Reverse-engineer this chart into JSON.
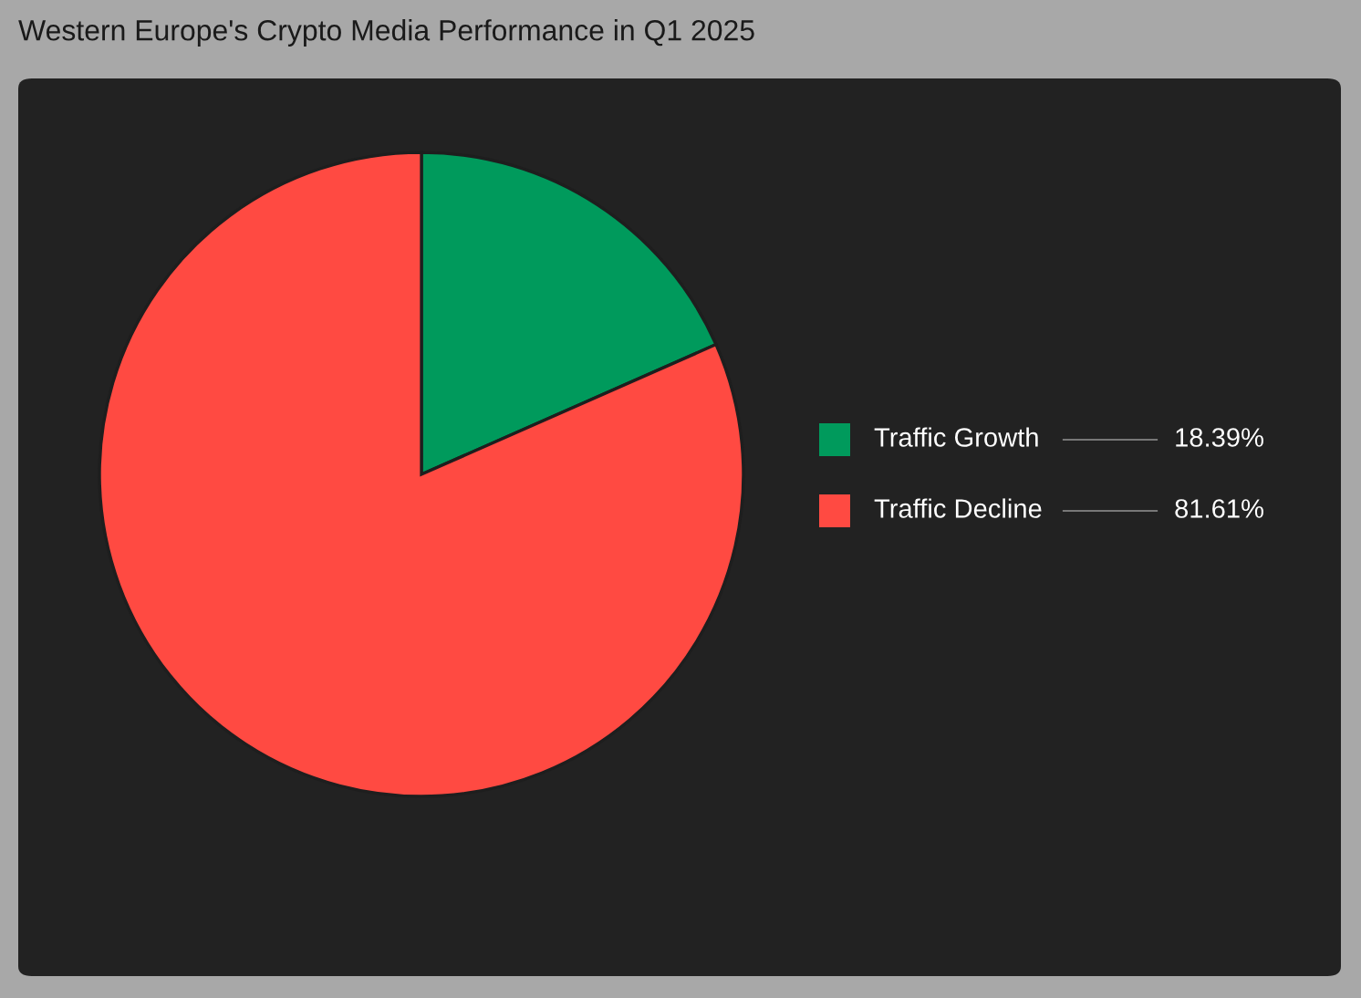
{
  "chart_data": {
    "type": "pie",
    "title": "Western Europe's Crypto Media Performance in Q1 2025",
    "categories": [
      "Traffic Growth",
      "Traffic Decline"
    ],
    "values": [
      18.39,
      81.61
    ],
    "colors": [
      "#009a5c",
      "#ff4a42"
    ],
    "value_labels": [
      "18.39%",
      "81.61%"
    ],
    "legend": "right"
  }
}
